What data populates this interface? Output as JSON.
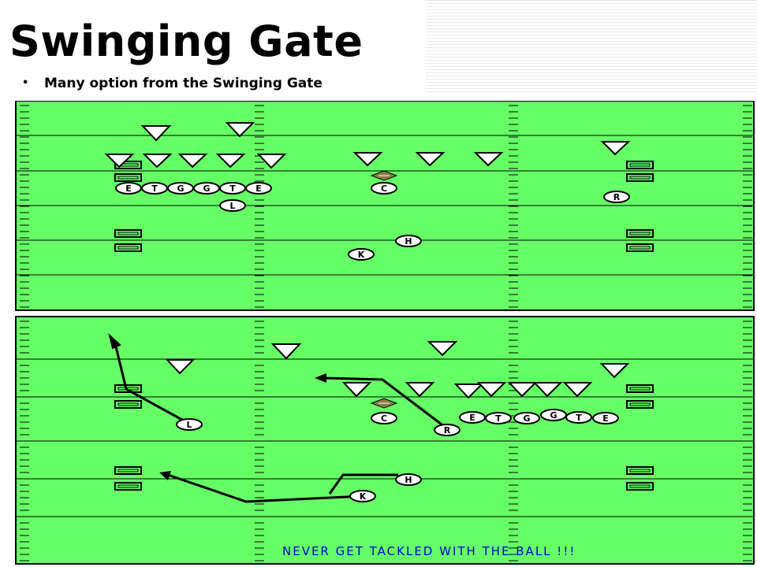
{
  "slide": {
    "title": "Swinging Gate",
    "bullet": "Many option from the Swinging Gate"
  },
  "colors": {
    "field": "#66ff66",
    "yard_line": "#000000",
    "player_fill": "#ffffff",
    "defender_fill": "#ffffff",
    "ball": "#8b7d4a",
    "slogan": "#0000cc"
  },
  "diagrams": {
    "top": {
      "offense": [
        {
          "id": "E1",
          "label": "E"
        },
        {
          "id": "T1",
          "label": "T"
        },
        {
          "id": "G1",
          "label": "G"
        },
        {
          "id": "G2",
          "label": "G"
        },
        {
          "id": "T2",
          "label": "T"
        },
        {
          "id": "E2",
          "label": "E"
        },
        {
          "id": "L",
          "label": "L"
        },
        {
          "id": "C",
          "label": "C"
        },
        {
          "id": "R",
          "label": "R"
        },
        {
          "id": "H",
          "label": "H"
        },
        {
          "id": "K",
          "label": "K"
        }
      ],
      "defenders": 11
    },
    "bottom": {
      "offense": [
        {
          "id": "L",
          "label": "L"
        },
        {
          "id": "C",
          "label": "C"
        },
        {
          "id": "R",
          "label": "R"
        },
        {
          "id": "E1",
          "label": "E"
        },
        {
          "id": "T1",
          "label": "T"
        },
        {
          "id": "G1",
          "label": "G"
        },
        {
          "id": "G2",
          "label": "G"
        },
        {
          "id": "T2",
          "label": "T"
        },
        {
          "id": "E2",
          "label": "E"
        },
        {
          "id": "H",
          "label": "H"
        },
        {
          "id": "K",
          "label": "K"
        }
      ],
      "defenders": 11,
      "routes": [
        "L",
        "R",
        "K"
      ],
      "slogan": "NEVER GET TACKLED WITH THE BALL !!!"
    }
  }
}
